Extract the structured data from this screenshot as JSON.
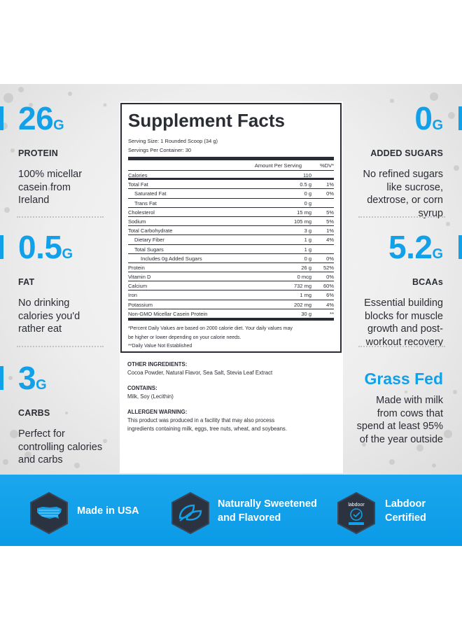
{
  "left_stats": [
    {
      "value": "26",
      "unit": "G",
      "caption": "PROTEIN",
      "description": [
        "100% micellar",
        "casein from",
        "Ireland"
      ]
    },
    {
      "value": "0.5",
      "unit": "G",
      "caption": "FAT",
      "description": [
        "No drinking",
        "calories you'd",
        "rather eat"
      ]
    },
    {
      "value": "3",
      "unit": "G",
      "caption": "CARBS",
      "description": [
        "Perfect for",
        "controlling calories",
        "and carbs"
      ]
    }
  ],
  "right_stats": [
    {
      "value": "0",
      "unit": "G",
      "caption": "ADDED SUGARS",
      "description": [
        "No refined sugars",
        "like sucrose,",
        "dextrose, or corn",
        "syrup"
      ]
    },
    {
      "value": "5.2",
      "unit": "G",
      "caption": "BCAAs",
      "description": [
        "Essential building",
        "blocks for muscle",
        "growth and post-",
        "workout recovery"
      ]
    },
    {
      "value": "Grass Fed",
      "unit": "",
      "caption": "",
      "description": [
        "Made with milk",
        "from cows that",
        "spend at least 95%",
        "of the year outside"
      ]
    }
  ],
  "supplement_facts": {
    "title": "Supplement Facts",
    "serving_size": "Serving Size: 1 Rounded Scoop (34 g)",
    "servings_per_container": "Servings Per Container: 30",
    "header_amount": "Amount Per Serving",
    "header_dv": "%DV*",
    "rows": [
      {
        "name": "Calories",
        "amount": "110",
        "dv": "",
        "indent": 0
      },
      {
        "name": "Total Fat",
        "amount": "0.5 g",
        "dv": "1%",
        "indent": 0
      },
      {
        "name": "Saturated Fat",
        "amount": "0 g",
        "dv": "0%",
        "indent": 1
      },
      {
        "name": "Trans Fat",
        "amount": "0 g",
        "dv": "",
        "indent": 1
      },
      {
        "name": "Cholesterol",
        "amount": "15 mg",
        "dv": "5%",
        "indent": 0
      },
      {
        "name": "Sodium",
        "amount": "105 mg",
        "dv": "5%",
        "indent": 0
      },
      {
        "name": "Total Carbohydrate",
        "amount": "3 g",
        "dv": "1%",
        "indent": 0
      },
      {
        "name": "Dietary Fiber",
        "amount": "1 g",
        "dv": "4%",
        "indent": 1
      },
      {
        "name": "Total Sugars",
        "amount": "1 g",
        "dv": "",
        "indent": 1
      },
      {
        "name": "Includes 0g Added Sugars",
        "amount": "0 g",
        "dv": "0%",
        "indent": 2
      },
      {
        "name": "Protein",
        "amount": "26 g",
        "dv": "52%",
        "indent": 0
      },
      {
        "name": "Vitamin D",
        "amount": "0 mcg",
        "dv": "0%",
        "indent": 0
      },
      {
        "name": "Calcium",
        "amount": "732 mg",
        "dv": "60%",
        "indent": 0
      },
      {
        "name": "Iron",
        "amount": "1 mg",
        "dv": "6%",
        "indent": 0
      },
      {
        "name": "Potassium",
        "amount": "202 mg",
        "dv": "4%",
        "indent": 0
      },
      {
        "name": "Non-GMO Micellar Casein Protein",
        "amount": "30 g",
        "dv": "**",
        "indent": 0
      }
    ],
    "footnote_1": "*Percent Daily Values are based on 2000 calorie diet. Your daily values may",
    "footnote_2": "be higher or lower depending on your calorie needs.",
    "footnote_3": "**Daily Value Not Established"
  },
  "ingredients": {
    "other_heading": "OTHER INGREDIENTS:",
    "other_text": "Cocoa Powder, Natural Flavor, Sea Salt, Stevia Leaf Extract",
    "contains_heading": "CONTAINS:",
    "contains_text": "Milk, Soy (Lecithin)",
    "allergen_heading": "ALLERGEN WARNING:",
    "allergen_line_1": "This product was produced in a facility that may also process",
    "allergen_line_2": "ingredients containing milk, eggs, tree nuts, wheat, and soybeans."
  },
  "badges": [
    {
      "icon": "usa-map-icon",
      "label": [
        "Made in USA"
      ]
    },
    {
      "icon": "leaves-icon",
      "label": [
        "Naturally Sweetened",
        "and Flavored"
      ]
    },
    {
      "icon": "labdoor-seal-icon",
      "label": [
        "Labdoor",
        "Certified"
      ],
      "seal_text": "labdoor"
    }
  ],
  "colors": {
    "accent": "#12a1e8",
    "text": "#2b2d35",
    "banner": "#0e9de8",
    "badge_hex": "#2b3340"
  }
}
